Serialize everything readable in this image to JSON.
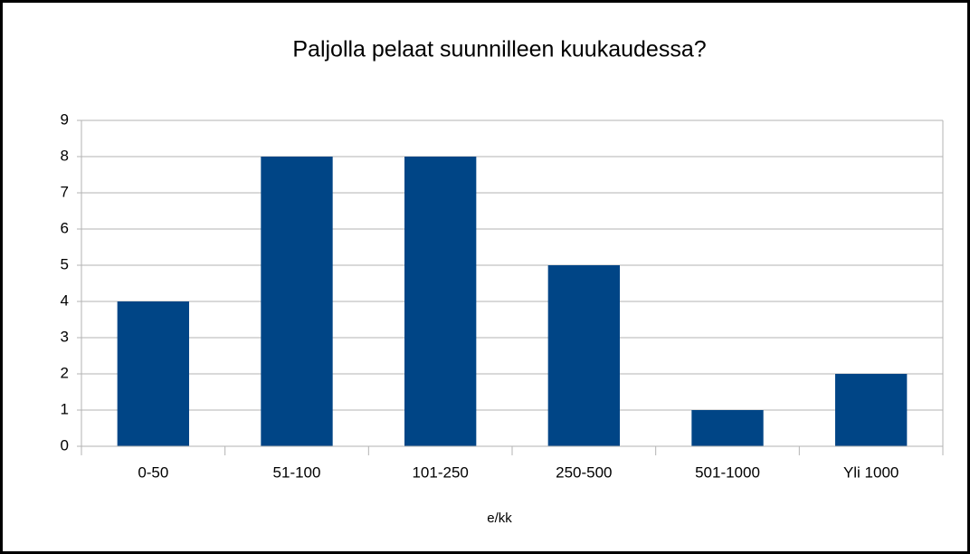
{
  "chart_data": {
    "type": "bar",
    "title": "Paljolla pelaat suunnilleen kuukaudessa?",
    "x_label": "e/kk",
    "categories": [
      "0-50",
      "51-100",
      "101-250",
      "250-500",
      "501-1000",
      "Yli 1000"
    ],
    "values": [
      4,
      8,
      8,
      5,
      1,
      2
    ],
    "color": "#004586",
    "ylim": [
      0,
      9
    ],
    "yticks": [
      0,
      1,
      2,
      3,
      4,
      5,
      6,
      7,
      8,
      9
    ],
    "grid": true
  }
}
